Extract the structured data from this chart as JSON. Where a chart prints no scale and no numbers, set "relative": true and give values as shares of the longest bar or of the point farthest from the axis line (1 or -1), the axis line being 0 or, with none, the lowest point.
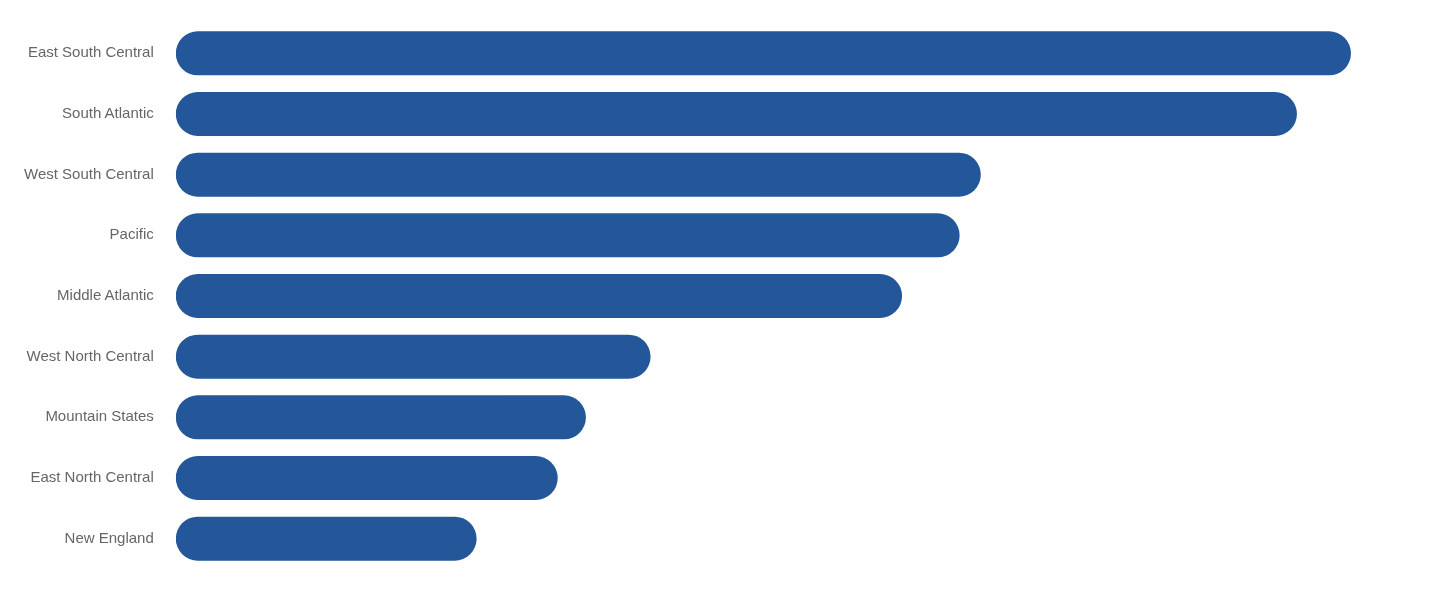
{
  "chart_data": {
    "type": "bar",
    "orientation": "horizontal",
    "relative": true,
    "categories": [
      "East South Central",
      "South Atlantic",
      "West South Central",
      "Pacific",
      "Middle Atlantic",
      "West North Central",
      "Mountain States",
      "East North Central",
      "New England"
    ],
    "values": [
      1,
      0.954,
      0.685,
      0.667,
      0.618,
      0.404,
      0.349,
      0.325,
      0.256
    ],
    "color": "#23579a"
  }
}
